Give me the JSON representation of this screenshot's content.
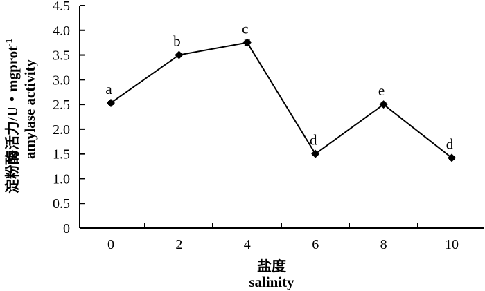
{
  "chart_data": {
    "type": "line",
    "categories": [
      "0",
      "2",
      "4",
      "6",
      "8",
      "10"
    ],
    "x": [
      0,
      2,
      4,
      6,
      8,
      10
    ],
    "series": [
      {
        "values": [
          2.53,
          3.5,
          3.75,
          1.5,
          2.5,
          1.42
        ],
        "errors": [
          0.03,
          0.03,
          0.05,
          0.03,
          0.03,
          0.03
        ],
        "marker": "diamond",
        "color": "#000000"
      }
    ],
    "annotations": [
      "a",
      "b",
      "c",
      "d",
      "e",
      "d"
    ],
    "ylim": [
      0,
      4.5
    ],
    "yticks": [
      "0",
      "0.5",
      "1.0",
      "1.5",
      "2.0",
      "2.5",
      "3.0",
      "3.5",
      "4.0",
      "4.5"
    ],
    "xlabel_cn": "盐度",
    "xlabel": "salinity",
    "ylabel_cn": "淀粉酶活力/U・mgprot",
    "ylabel_sup": "-1",
    "ylabel": "amylase activity",
    "grid": false,
    "legend": "none"
  }
}
